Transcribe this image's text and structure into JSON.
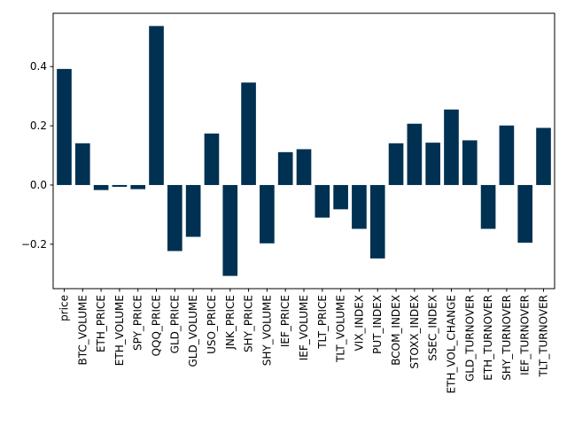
{
  "chart_data": {
    "type": "bar",
    "title": "",
    "xlabel": "",
    "ylabel": "",
    "categories": [
      "price",
      "BTC_VOLUME",
      "ETH_PRICE",
      "ETH_VOLUME",
      "SPY_PRICE",
      "QQQ_PRICE",
      "GLD_PRICE",
      "GLD_VOLUME",
      "USO_PRICE",
      "JNK_PRICE",
      "SHY_PRICE",
      "SHY_VOLUME",
      "IEF_PRICE",
      "IEF_VOLUME",
      "TLT_PRICE",
      "TLT_VOLUME",
      "VIX_INDEX",
      "PUT_INDEX",
      "BCOM_INDEX",
      "STOXX_INDEX",
      "SSEC_INDEX",
      "ETH_VOL_CHANGE",
      "GLD_TURNOVER",
      "ETH_TURNOVER",
      "SHY_TURNOVER",
      "IEF_TURNOVER",
      "TLT_TURNOVER"
    ],
    "values": [
      0.392,
      0.141,
      -0.017,
      -0.006,
      -0.014,
      0.537,
      -0.223,
      -0.175,
      0.174,
      -0.307,
      0.346,
      -0.197,
      0.111,
      0.121,
      -0.11,
      -0.082,
      -0.148,
      -0.248,
      0.141,
      0.207,
      0.143,
      0.255,
      0.151,
      -0.148,
      0.201,
      -0.195,
      0.193
    ],
    "ylim": [
      -0.35,
      0.58
    ],
    "yticks": [
      -0.2,
      0.0,
      0.2,
      0.4
    ],
    "ytick_labels": [
      "−0.2",
      "0.0",
      "0.2",
      "0.4"
    ],
    "bar_color": "#003152",
    "grid": false
  }
}
